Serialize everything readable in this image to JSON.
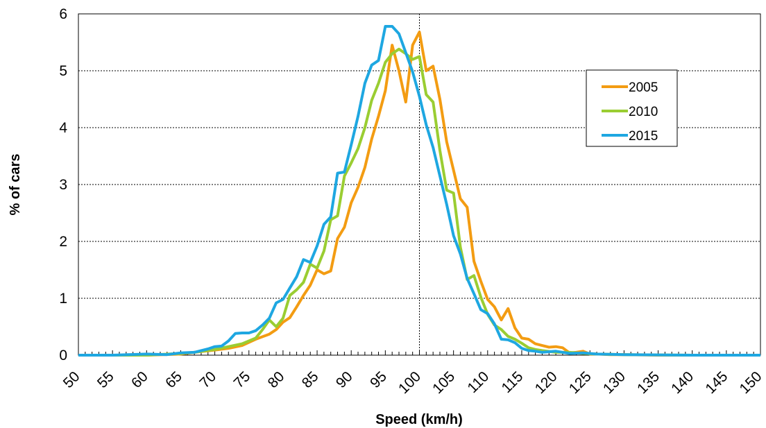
{
  "chart_data": {
    "type": "line",
    "title": "",
    "xlabel": "Speed (km/h)",
    "ylabel": "% of cars",
    "xlim": [
      50,
      150
    ],
    "ylim": [
      0,
      6
    ],
    "x_ticks": [
      50,
      55,
      60,
      65,
      70,
      75,
      80,
      85,
      90,
      95,
      100,
      105,
      110,
      115,
      120,
      125,
      130,
      135,
      140,
      145,
      150
    ],
    "y_ticks": [
      0,
      1,
      2,
      3,
      4,
      5,
      6
    ],
    "grid": {
      "horizontal": true,
      "vertical": "x=100 only"
    },
    "legend": {
      "placement": "upper right, inside plot"
    },
    "series": [
      {
        "name": "2005",
        "color": "#F39C12",
        "x": [
          50,
          55,
          60,
          65,
          67,
          70,
          72,
          74,
          76,
          78,
          79,
          80,
          81,
          82,
          83,
          84,
          85,
          86,
          87,
          88,
          89,
          90,
          91,
          92,
          93,
          94,
          95,
          96,
          97,
          98,
          99,
          100,
          101,
          102,
          103,
          104,
          105,
          106,
          107,
          108,
          109,
          110,
          111,
          112,
          113,
          114,
          115,
          116,
          117,
          118,
          119,
          120,
          121,
          122,
          123,
          124,
          125,
          126,
          128,
          130,
          135,
          140,
          145,
          150
        ],
        "y": [
          0,
          0,
          0,
          0.02,
          0.05,
          0.09,
          0.12,
          0.17,
          0.28,
          0.37,
          0.45,
          0.58,
          0.66,
          0.85,
          1.05,
          1.23,
          1.5,
          1.43,
          1.48,
          2.05,
          2.25,
          2.68,
          2.95,
          3.3,
          3.8,
          4.2,
          4.65,
          5.45,
          5.0,
          4.45,
          5.45,
          5.68,
          5.0,
          5.08,
          4.5,
          3.75,
          3.25,
          2.75,
          2.6,
          1.65,
          1.3,
          0.98,
          0.85,
          0.62,
          0.82,
          0.48,
          0.3,
          0.28,
          0.2,
          0.17,
          0.14,
          0.15,
          0.13,
          0.04,
          0.05,
          0.07,
          0.02,
          0.02,
          0.01,
          0.01,
          0,
          0,
          0,
          0
        ]
      },
      {
        "name": "2010",
        "color": "#9ACD32",
        "x": [
          50,
          55,
          60,
          65,
          67,
          70,
          72,
          74,
          76,
          77,
          78,
          79,
          80,
          81,
          82,
          83,
          84,
          85,
          86,
          87,
          88,
          89,
          90,
          91,
          92,
          93,
          94,
          95,
          96,
          97,
          98,
          99,
          100,
          101,
          102,
          103,
          104,
          105,
          106,
          107,
          108,
          109,
          110,
          111,
          112,
          113,
          114,
          115,
          116,
          117,
          118,
          120,
          122,
          124,
          126,
          130,
          140,
          150
        ],
        "y": [
          0,
          0,
          0,
          0.03,
          0.05,
          0.1,
          0.15,
          0.2,
          0.3,
          0.45,
          0.62,
          0.5,
          0.65,
          1.05,
          1.15,
          1.28,
          1.6,
          1.53,
          1.83,
          2.38,
          2.45,
          3.15,
          3.38,
          3.63,
          4.0,
          4.48,
          4.78,
          5.15,
          5.3,
          5.38,
          5.3,
          5.2,
          5.25,
          4.58,
          4.45,
          3.6,
          2.9,
          2.85,
          1.9,
          1.33,
          1.4,
          1.02,
          0.72,
          0.53,
          0.45,
          0.33,
          0.28,
          0.21,
          0.13,
          0.1,
          0.08,
          0.05,
          0.05,
          0.03,
          0.02,
          0.01,
          0,
          0
        ]
      },
      {
        "name": "2015",
        "color": "#1EA7E1",
        "x": [
          50,
          55,
          60,
          63,
          65,
          67,
          69,
          70,
          71,
          72,
          73,
          74,
          75,
          76,
          77,
          78,
          79,
          80,
          81,
          82,
          83,
          84,
          85,
          86,
          87,
          88,
          89,
          90,
          91,
          92,
          93,
          94,
          95,
          96,
          97,
          98,
          99,
          100,
          101,
          102,
          103,
          104,
          105,
          106,
          107,
          108,
          109,
          110,
          111,
          112,
          113,
          114,
          115,
          116,
          117,
          118,
          120,
          122,
          124,
          126,
          130,
          140,
          150
        ],
        "y": [
          0,
          0,
          0.02,
          0.01,
          0.04,
          0.05,
          0.11,
          0.15,
          0.16,
          0.25,
          0.38,
          0.39,
          0.39,
          0.43,
          0.53,
          0.65,
          0.92,
          0.98,
          1.18,
          1.38,
          1.68,
          1.63,
          1.92,
          2.3,
          2.43,
          3.2,
          3.22,
          3.7,
          4.2,
          4.78,
          5.1,
          5.18,
          5.78,
          5.78,
          5.65,
          5.32,
          4.98,
          4.55,
          4.05,
          3.65,
          3.15,
          2.65,
          2.1,
          1.78,
          1.35,
          1.08,
          0.8,
          0.73,
          0.55,
          0.28,
          0.27,
          0.22,
          0.12,
          0.08,
          0.07,
          0.05,
          0.07,
          0.03,
          0.04,
          0.02,
          0.01,
          0,
          0
        ]
      }
    ]
  }
}
